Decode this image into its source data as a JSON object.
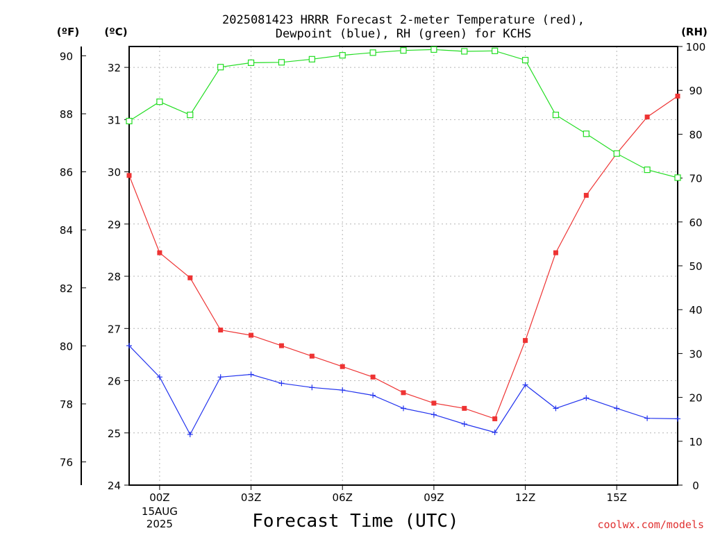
{
  "chart_data": {
    "type": "line",
    "title_line1": "2025081423 HRRR Forecast 2-meter Temperature (red),",
    "title_line2": "Dewpoint (blue), RH (green) for KCHS",
    "xlabel": "Forecast Time (UTC)",
    "credit": "coolwx.com/models",
    "left_unit_f": "(ºF)",
    "left_unit_c": "(ºC)",
    "right_unit": "(RH)",
    "x_ticks": [
      {
        "hour": 1,
        "label": "00Z",
        "sub1": "15AUG",
        "sub2": "2025"
      },
      {
        "hour": 4,
        "label": "03Z"
      },
      {
        "hour": 7,
        "label": "06Z"
      },
      {
        "hour": 10,
        "label": "09Z"
      },
      {
        "hour": 13,
        "label": "12Z"
      },
      {
        "hour": 16,
        "label": "15Z"
      }
    ],
    "x_range_hours": [
      0,
      18
    ],
    "celsius_ticks": [
      "24",
      "25",
      "26",
      "27",
      "28",
      "29",
      "30",
      "31",
      "32"
    ],
    "celsius_range": [
      24,
      32.4
    ],
    "fahrenheit_ticks": [
      "76",
      "78",
      "80",
      "82",
      "84",
      "86",
      "88",
      "90"
    ],
    "rh_ticks": [
      "0",
      "10",
      "20",
      "30",
      "40",
      "50",
      "60",
      "70",
      "80",
      "90",
      "100"
    ],
    "rh_range": [
      0,
      100
    ],
    "grid": true,
    "series": [
      {
        "name": "Temperature",
        "color": "#ee3333",
        "marker": "filled-square",
        "axis": "celsius",
        "values": [
          29.93,
          28.45,
          27.97,
          26.97,
          26.87,
          26.67,
          26.47,
          26.27,
          26.07,
          25.77,
          25.57,
          25.47,
          25.27,
          26.77,
          28.45,
          29.55,
          30.35,
          31.05,
          31.45
        ]
      },
      {
        "name": "Dewpoint",
        "color": "#2233ee",
        "marker": "plus",
        "axis": "celsius",
        "values": [
          26.67,
          26.07,
          24.97,
          26.07,
          26.12,
          25.95,
          25.87,
          25.82,
          25.72,
          25.47,
          25.35,
          25.17,
          25.01,
          25.92,
          25.47,
          25.67,
          25.47,
          25.28,
          25.27
        ]
      },
      {
        "name": "RH",
        "color": "#22dd22",
        "marker": "open-square",
        "axis": "rh",
        "values": [
          83.0,
          87.4,
          84.4,
          95.3,
          96.3,
          96.4,
          97.1,
          98.0,
          98.6,
          99.1,
          99.3,
          98.9,
          99.0,
          96.9,
          84.4,
          80.1,
          75.6,
          71.9,
          70.1
        ]
      }
    ]
  }
}
